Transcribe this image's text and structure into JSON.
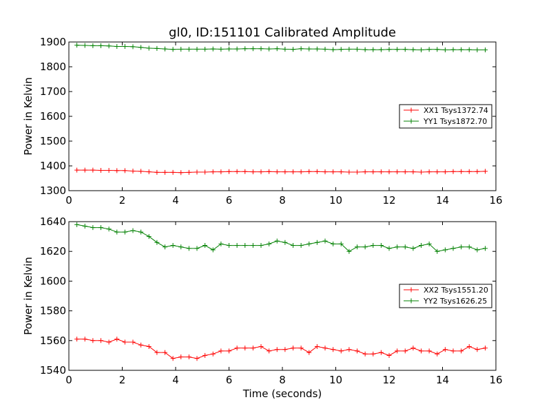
{
  "chart_data": [
    {
      "type": "line",
      "title": "gl0, ID:151101 Calibrated Amplitude",
      "xlabel": "",
      "ylabel": "Power in Kelvin",
      "xlim": [
        0,
        16
      ],
      "ylim": [
        1300,
        1900
      ],
      "xticks": [
        0,
        2,
        4,
        6,
        8,
        10,
        12,
        14,
        16
      ],
      "yticks": [
        1300,
        1400,
        1500,
        1600,
        1700,
        1800,
        1900
      ],
      "grid": false,
      "legend_position": "center-right",
      "x": [
        0.3,
        0.6,
        0.9,
        1.2,
        1.5,
        1.8,
        2.1,
        2.4,
        2.7,
        3.0,
        3.3,
        3.6,
        3.9,
        4.2,
        4.5,
        4.8,
        5.1,
        5.4,
        5.7,
        6.0,
        6.3,
        6.6,
        6.9,
        7.2,
        7.5,
        7.8,
        8.1,
        8.4,
        8.7,
        9.0,
        9.3,
        9.6,
        9.9,
        10.2,
        10.5,
        10.8,
        11.1,
        11.4,
        11.7,
        12.0,
        12.3,
        12.6,
        12.9,
        13.2,
        13.5,
        13.8,
        14.1,
        14.4,
        14.7,
        15.0,
        15.3,
        15.6
      ],
      "series": [
        {
          "name": "XX1 Tsys1372.74",
          "color": "#ff0000",
          "values": [
            1383,
            1383,
            1383,
            1382,
            1382,
            1381,
            1381,
            1379,
            1378,
            1376,
            1374,
            1374,
            1374,
            1373,
            1374,
            1375,
            1375,
            1376,
            1376,
            1377,
            1377,
            1377,
            1376,
            1376,
            1377,
            1376,
            1376,
            1376,
            1376,
            1377,
            1377,
            1376,
            1376,
            1376,
            1375,
            1375,
            1376,
            1376,
            1376,
            1376,
            1376,
            1376,
            1376,
            1375,
            1376,
            1376,
            1376,
            1377,
            1377,
            1377,
            1377,
            1378
          ]
        },
        {
          "name": "YY1 Tsys1872.70",
          "color": "#008000",
          "values": [
            1887,
            1886,
            1885,
            1885,
            1884,
            1882,
            1882,
            1881,
            1878,
            1875,
            1874,
            1872,
            1870,
            1871,
            1871,
            1871,
            1871,
            1872,
            1871,
            1872,
            1872,
            1873,
            1873,
            1873,
            1872,
            1873,
            1871,
            1870,
            1873,
            1872,
            1872,
            1871,
            1869,
            1870,
            1871,
            1871,
            1869,
            1869,
            1869,
            1870,
            1870,
            1870,
            1869,
            1868,
            1870,
            1870,
            1868,
            1869,
            1869,
            1869,
            1868,
            1868
          ]
        }
      ]
    },
    {
      "type": "line",
      "title": "",
      "xlabel": "Time (seconds)",
      "ylabel": "Power in Kelvin",
      "xlim": [
        0,
        16
      ],
      "ylim": [
        1540,
        1640
      ],
      "xticks": [
        0,
        2,
        4,
        6,
        8,
        10,
        12,
        14,
        16
      ],
      "yticks": [
        1540,
        1560,
        1580,
        1600,
        1620,
        1640
      ],
      "grid": false,
      "legend_position": "center-right",
      "x": [
        0.3,
        0.6,
        0.9,
        1.2,
        1.5,
        1.8,
        2.1,
        2.4,
        2.7,
        3.0,
        3.3,
        3.6,
        3.9,
        4.2,
        4.5,
        4.8,
        5.1,
        5.4,
        5.7,
        6.0,
        6.3,
        6.6,
        6.9,
        7.2,
        7.5,
        7.8,
        8.1,
        8.4,
        8.7,
        9.0,
        9.3,
        9.6,
        9.9,
        10.2,
        10.5,
        10.8,
        11.1,
        11.4,
        11.7,
        12.0,
        12.3,
        12.6,
        12.9,
        13.2,
        13.5,
        13.8,
        14.1,
        14.4,
        14.7,
        15.0,
        15.3,
        15.6
      ],
      "series": [
        {
          "name": "XX2 Tsys1551.20",
          "color": "#ff0000",
          "values": [
            1561,
            1561,
            1560,
            1560,
            1559,
            1561,
            1559,
            1559,
            1557,
            1556,
            1552,
            1552,
            1548,
            1549,
            1549,
            1548,
            1550,
            1551,
            1553,
            1553,
            1555,
            1555,
            1555,
            1556,
            1553,
            1554,
            1554,
            1555,
            1555,
            1552,
            1556,
            1555,
            1554,
            1553,
            1554,
            1553,
            1551,
            1551,
            1552,
            1550,
            1553,
            1553,
            1555,
            1553,
            1553,
            1551,
            1554,
            1553,
            1553,
            1556,
            1554,
            1555
          ]
        },
        {
          "name": "YY2 Tsys1626.25",
          "color": "#008000",
          "values": [
            1638,
            1637,
            1636,
            1636,
            1635,
            1633,
            1633,
            1634,
            1633,
            1630,
            1626,
            1623,
            1624,
            1623,
            1622,
            1622,
            1624,
            1621,
            1625,
            1624,
            1624,
            1624,
            1624,
            1624,
            1625,
            1627,
            1626,
            1624,
            1624,
            1625,
            1626,
            1627,
            1625,
            1625,
            1620,
            1623,
            1623,
            1624,
            1624,
            1622,
            1623,
            1623,
            1622,
            1624,
            1625,
            1620,
            1621,
            1622,
            1623,
            1623,
            1621,
            1622
          ]
        }
      ]
    }
  ]
}
